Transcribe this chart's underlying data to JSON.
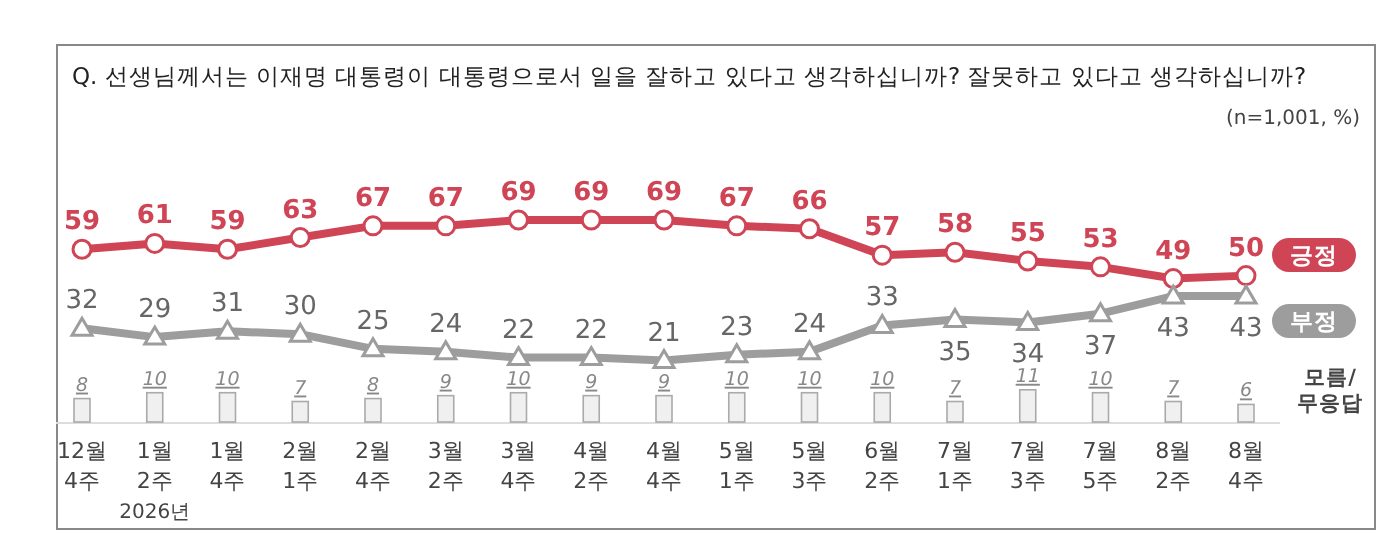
{
  "chart_data": {
    "type": "line",
    "title": "Q. 선생님께서는 이재명 대통령이 대통령으로서 일을 잘하고 있다고 생각하십니까? 잘못하고 있다고 생각하십니까?",
    "annotations": [
      "(n=1,001, %)",
      "2026년"
    ],
    "categories": [
      "12월 4주",
      "1월 2주",
      "1월 4주",
      "2월 1주",
      "2월 4주",
      "3월 2주",
      "3월 4주",
      "4월 2주",
      "4월 4주",
      "5월 1주",
      "5월 3주",
      "6월 2주",
      "7월 1주",
      "7월 3주",
      "7월 5주",
      "8월 2주",
      "8월 4주"
    ],
    "series": [
      {
        "name": "긍정",
        "color": "#cf4556",
        "marker": "circle",
        "values": [
          59,
          61,
          59,
          63,
          67,
          67,
          69,
          69,
          69,
          67,
          66,
          57,
          58,
          55,
          53,
          49,
          50
        ]
      },
      {
        "name": "부정",
        "color": "#9d9d9d",
        "marker": "triangle",
        "values": [
          32,
          29,
          31,
          30,
          25,
          24,
          22,
          22,
          21,
          23,
          24,
          33,
          35,
          34,
          37,
          43,
          43
        ]
      },
      {
        "name": "모름/무응답",
        "type": "bar",
        "color": "#f0f0f0",
        "values": [
          8,
          10,
          10,
          7,
          8,
          9,
          10,
          9,
          9,
          10,
          10,
          10,
          7,
          11,
          10,
          7,
          6
        ]
      }
    ],
    "data_labels": true,
    "legend": "right"
  }
}
